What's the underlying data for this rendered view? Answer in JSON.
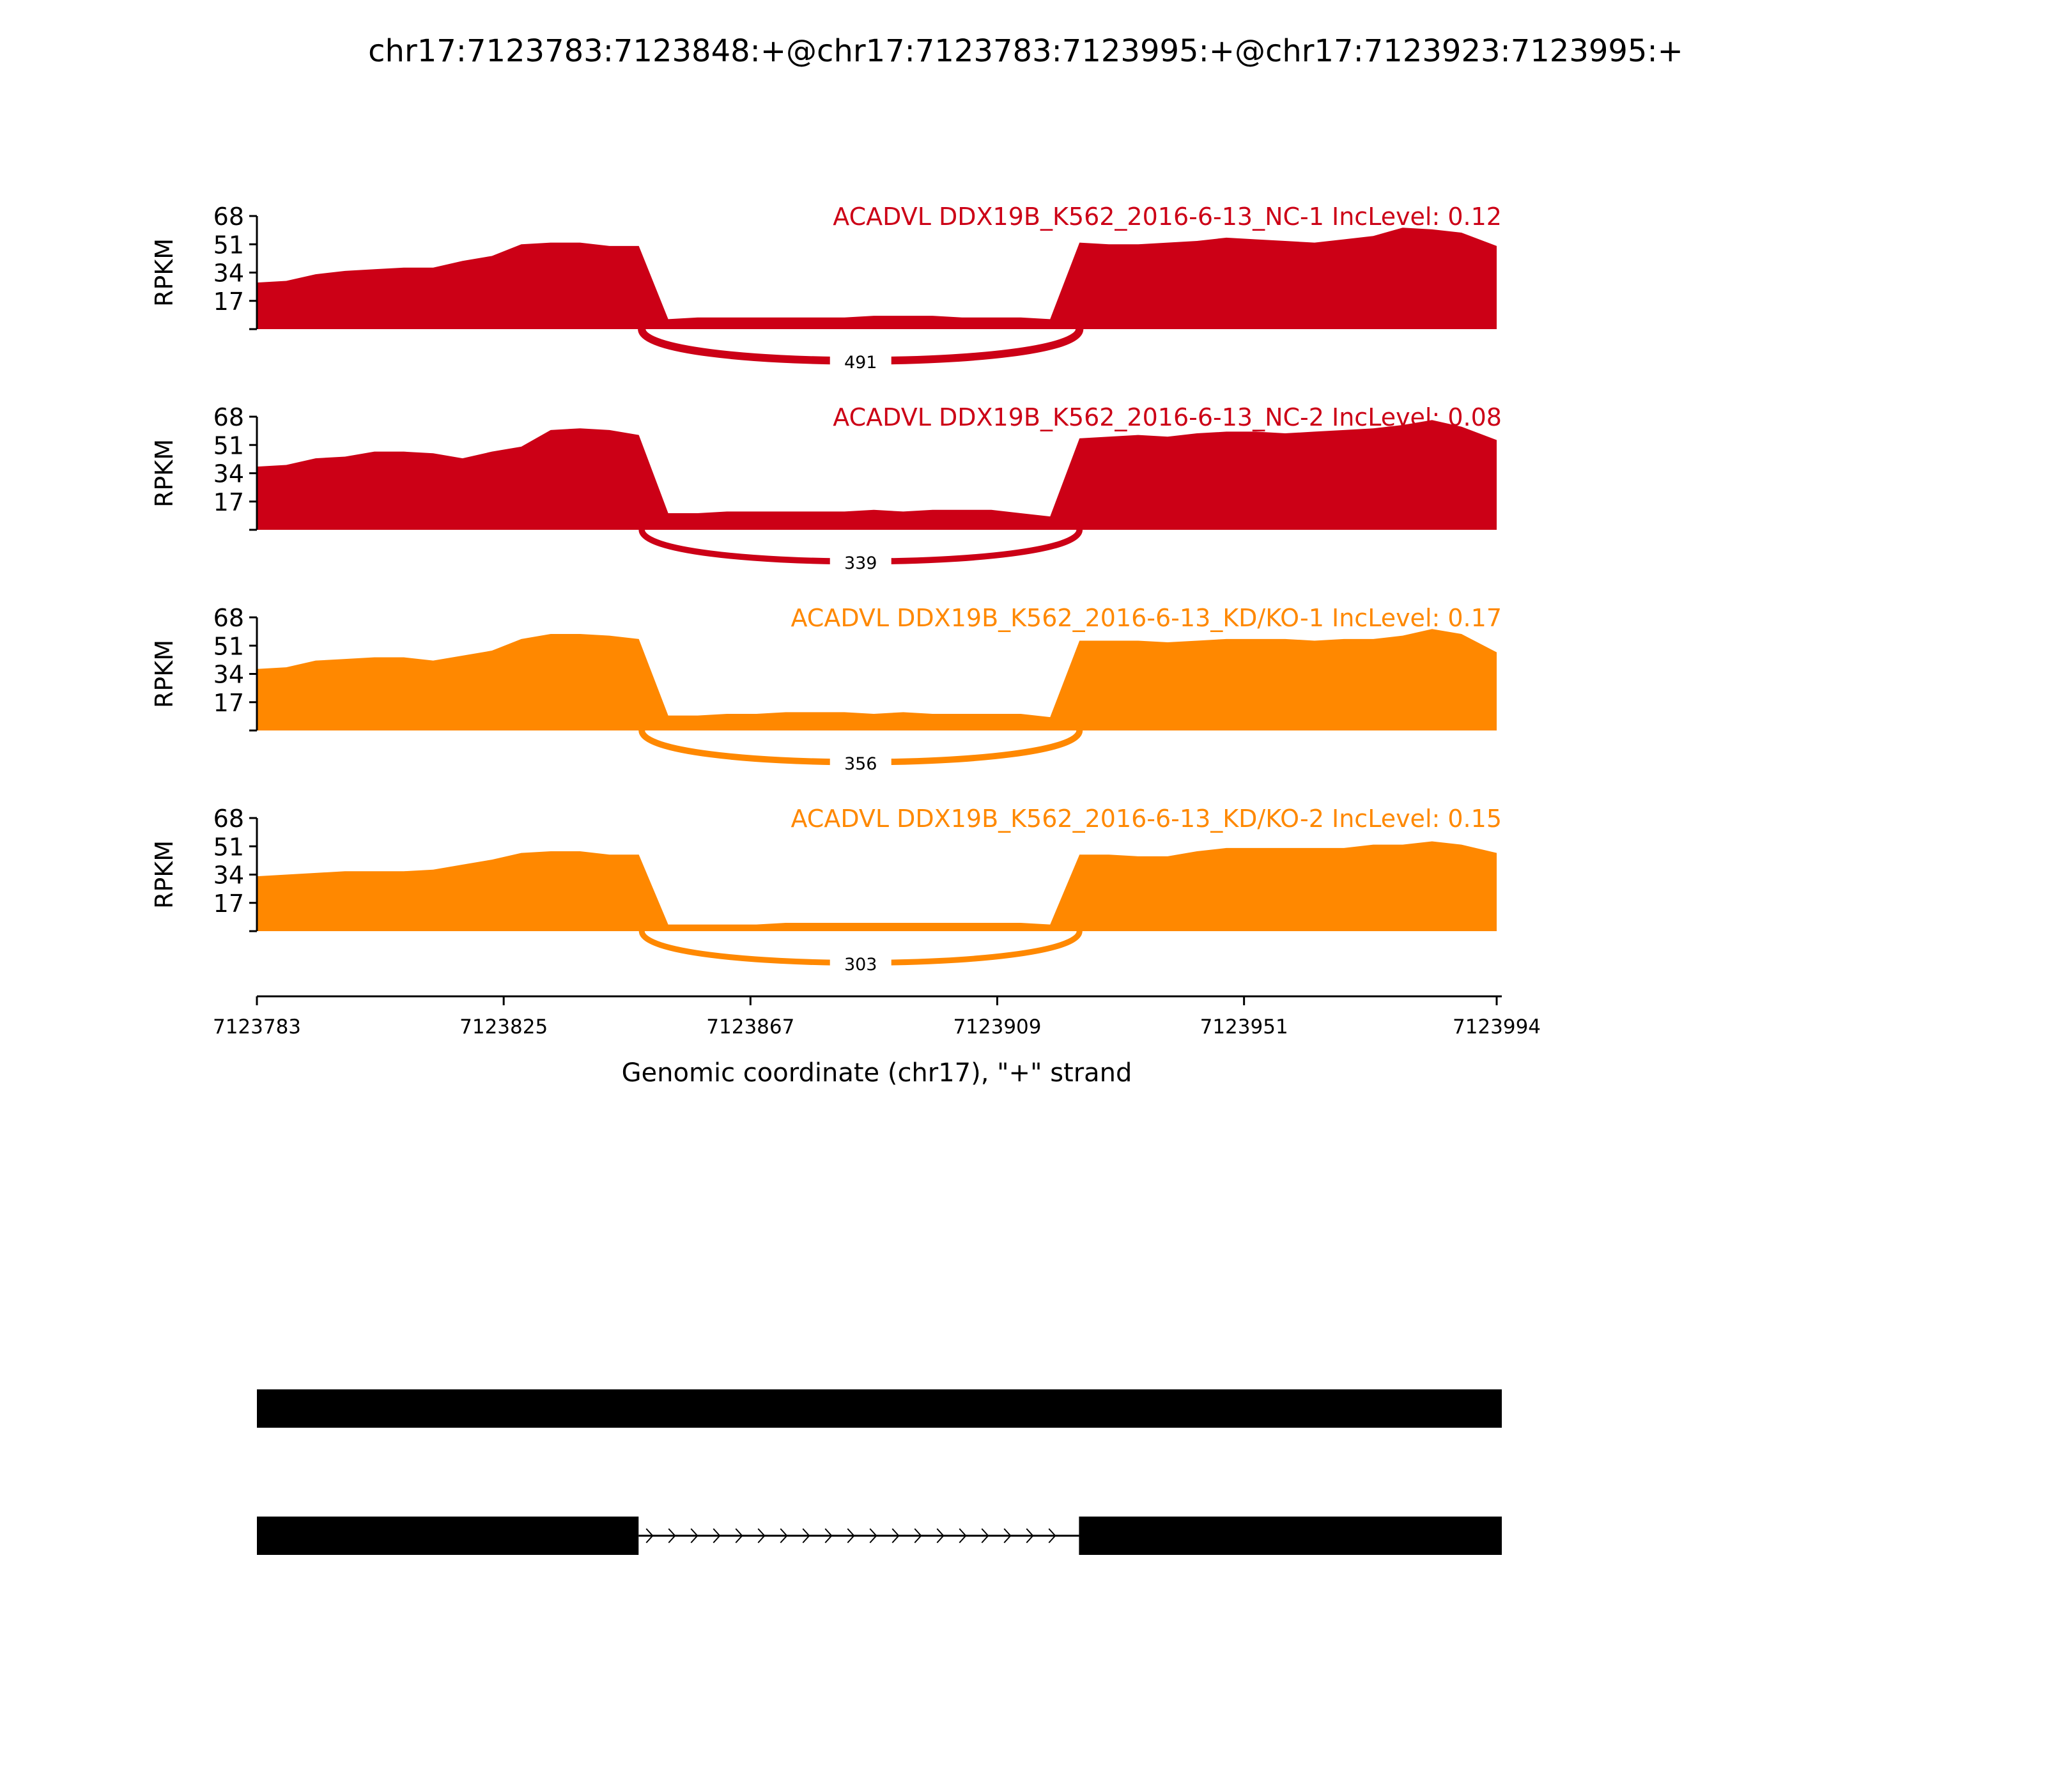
{
  "chart_data": {
    "type": "area",
    "title": "chr17:7123783:7123848:+@chr17:7123783:7123995:+@chr17:7123923:7123995:+",
    "xlabel": "Genomic coordinate (chr17), \"+\" strand",
    "ylabel": "RPKM",
    "xlim": [
      7123783,
      7123994
    ],
    "ylim": [
      0,
      68
    ],
    "yticks": [
      "17",
      "34",
      "51",
      "68"
    ],
    "xticks": [
      "7123783",
      "7123825",
      "7123867",
      "7123909",
      "7123951",
      "7123994"
    ],
    "x_step": 5,
    "junction": {
      "start": 7123848,
      "end": 7123923
    },
    "colors": {
      "NC": "#cc0016",
      "KD": "#ff8800"
    },
    "series": [
      {
        "name": "ACADVL DDX19B_K562_2016-6-13_NC-1 IncLevel: 0.12",
        "group": "NC",
        "junction_count": "491",
        "values": [
          28,
          29,
          33,
          35,
          36,
          37,
          37,
          41,
          44,
          51,
          52,
          52,
          50,
          50,
          6,
          7,
          7,
          7,
          7,
          7,
          7,
          8,
          8,
          8,
          7,
          7,
          7,
          6,
          52,
          51,
          51,
          52,
          53,
          55,
          54,
          53,
          52,
          54,
          56,
          61,
          60,
          58,
          50
        ]
      },
      {
        "name": "ACADVL DDX19B_K562_2016-6-13_NC-2 IncLevel: 0.08",
        "group": "NC",
        "junction_count": "339",
        "values": [
          38,
          39,
          43,
          44,
          47,
          47,
          46,
          43,
          47,
          50,
          60,
          61,
          60,
          57,
          10,
          10,
          11,
          11,
          11,
          11,
          11,
          12,
          11,
          12,
          12,
          12,
          10,
          8,
          55,
          56,
          57,
          56,
          58,
          59,
          59,
          58,
          59,
          60,
          61,
          63,
          66,
          62,
          54
        ]
      },
      {
        "name": "ACADVL DDX19B_K562_2016-6-13_KD/KO-1 IncLevel: 0.17",
        "group": "KD",
        "junction_count": "356",
        "values": [
          37,
          38,
          42,
          43,
          44,
          44,
          42,
          45,
          48,
          55,
          58,
          58,
          57,
          55,
          9,
          9,
          10,
          10,
          11,
          11,
          11,
          10,
          11,
          10,
          10,
          10,
          10,
          8,
          54,
          54,
          54,
          53,
          54,
          55,
          55,
          55,
          54,
          55,
          55,
          57,
          61,
          58,
          47
        ]
      },
      {
        "name": "ACADVL DDX19B_K562_2016-6-13_KD/KO-2 IncLevel: 0.15",
        "group": "KD",
        "junction_count": "303",
        "values": [
          33,
          34,
          35,
          36,
          36,
          36,
          37,
          40,
          43,
          47,
          48,
          48,
          46,
          46,
          4,
          4,
          4,
          4,
          5,
          5,
          5,
          5,
          5,
          5,
          5,
          5,
          5,
          4,
          46,
          46,
          45,
          45,
          48,
          50,
          50,
          50,
          50,
          50,
          52,
          52,
          54,
          52,
          47
        ]
      }
    ],
    "gene_models": [
      {
        "exons": [
          [
            7123783,
            7123995
          ]
        ]
      },
      {
        "exons": [
          [
            7123783,
            7123848
          ],
          [
            7123923,
            7123995
          ]
        ]
      }
    ]
  }
}
